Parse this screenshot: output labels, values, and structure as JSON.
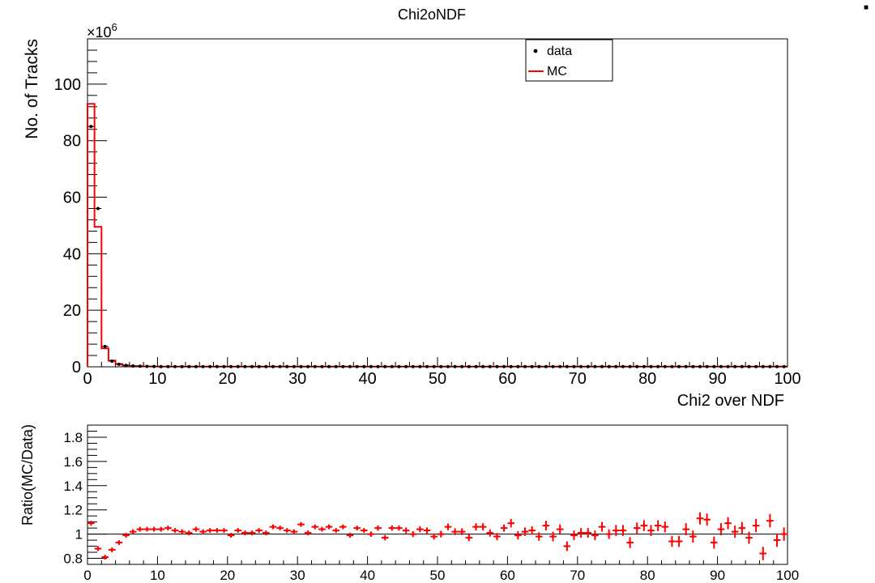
{
  "corner_marker": "■",
  "chart_data": [
    {
      "type": "histogram",
      "title": "Chi2oNDF",
      "xlabel": "Chi2 over NDF",
      "ylabel": "No. of Tracks",
      "y_multiplier_base": "×10",
      "y_multiplier_exp": "6",
      "xlim": [
        0,
        100
      ],
      "ylim": [
        0,
        116
      ],
      "log_scale": false,
      "grid": false,
      "legend_position": "top-right",
      "x_ticks": [
        0,
        10,
        20,
        30,
        40,
        50,
        60,
        70,
        80,
        90,
        100
      ],
      "y_ticks": [
        0,
        20,
        40,
        60,
        80,
        100
      ],
      "bin_edges_start": 0,
      "bin_width": 1,
      "series": [
        {
          "name": "data",
          "style": "points",
          "color": "#000000",
          "values": [
            85,
            56,
            7.2,
            2.0,
            0.9,
            0.5,
            0.3,
            0.2,
            0.15,
            0.1
          ]
        },
        {
          "name": "MC",
          "style": "step",
          "color": "#ff0000",
          "values": [
            93,
            49.5,
            6.5,
            2.2,
            1.0,
            0.5,
            0.3,
            0.2,
            0.15,
            0.1
          ]
        }
      ]
    },
    {
      "type": "scatter",
      "title": "",
      "xlabel": "",
      "ylabel": "Ratio(MC/Data)",
      "xlim": [
        0,
        100
      ],
      "ylim": [
        0.75,
        1.9
      ],
      "grid": false,
      "reference_line": 1,
      "x_ticks": [
        0,
        10,
        20,
        30,
        40,
        50,
        60,
        70,
        80,
        90,
        100
      ],
      "y_ticks": [
        0.8,
        1,
        1.2,
        1.4,
        1.6,
        1.8
      ],
      "y_tick_labels": [
        "0.8",
        "1",
        "1.2",
        "1.4",
        "1.6",
        "1.8"
      ],
      "series": [
        {
          "color": "#ff0000",
          "x": [
            0.5,
            1.5,
            2.5,
            3.5,
            4.5,
            5.5,
            6.5,
            7.5,
            8.5,
            9.5,
            10.5,
            11.5,
            12.5,
            13.5,
            14.5,
            15.5,
            16.5,
            17.5,
            18.5,
            19.5,
            20.5,
            21.5,
            22.5,
            23.5,
            24.5,
            25.5,
            26.5,
            27.5,
            28.5,
            29.5,
            30.5,
            31.5,
            32.5,
            33.5,
            34.5,
            35.5,
            36.5,
            37.5,
            38.5,
            39.5,
            40.5,
            41.5,
            42.5,
            43.5,
            44.5,
            45.5,
            46.5,
            47.5,
            48.5,
            49.5,
            50.5,
            51.5,
            52.5,
            53.5,
            54.5,
            55.5,
            56.5,
            57.5,
            58.5,
            59.5,
            60.5,
            61.5,
            62.5,
            63.5,
            64.5,
            65.5,
            66.5,
            67.5,
            68.5,
            69.5,
            70.5,
            71.5,
            72.5,
            73.5,
            74.5,
            75.5,
            76.5,
            77.5,
            78.5,
            79.5,
            80.5,
            81.5,
            82.5,
            83.5,
            84.5,
            85.5,
            86.5,
            87.5,
            88.5,
            89.5,
            90.5,
            91.5,
            92.5,
            93.5,
            94.5,
            95.5,
            96.5,
            97.5,
            98.5,
            99.5
          ],
          "y": [
            1.09,
            0.88,
            0.81,
            0.87,
            0.93,
            0.99,
            1.02,
            1.04,
            1.04,
            1.04,
            1.04,
            1.05,
            1.03,
            1.02,
            1.01,
            1.04,
            1.02,
            1.03,
            1.03,
            1.03,
            0.99,
            1.03,
            1.01,
            1.01,
            1.03,
            1.01,
            1.06,
            1.05,
            1.03,
            1.02,
            1.08,
            1.01,
            1.06,
            1.04,
            1.06,
            1.03,
            1.06,
            0.99,
            1.05,
            1.03,
            1.0,
            1.05,
            0.97,
            1.05,
            1.05,
            1.03,
            1.0,
            1.04,
            1.03,
            0.98,
            1.0,
            1.06,
            1.02,
            1.02,
            0.97,
            1.06,
            1.06,
            1.01,
            0.98,
            1.05,
            1.09,
            0.99,
            1.02,
            1.03,
            0.98,
            1.07,
            0.98,
            1.04,
            0.9,
            0.99,
            1.01,
            1.01,
            0.99,
            1.06,
            1.0,
            1.03,
            1.03,
            0.93,
            1.05,
            1.07,
            1.03,
            1.07,
            1.06,
            0.94,
            0.94,
            1.04,
            0.98,
            1.13,
            1.12,
            0.93,
            1.04,
            1.09,
            1.02,
            1.05,
            0.97,
            1.07,
            0.84,
            1.11,
            0.95,
            1.0
          ],
          "err": [
            0.005,
            0.01,
            0.01,
            0.01,
            0.01,
            0.01,
            0.01,
            0.01,
            0.01,
            0.01,
            0.01,
            0.01,
            0.01,
            0.01,
            0.01,
            0.01,
            0.01,
            0.01,
            0.01,
            0.01,
            0.012,
            0.012,
            0.012,
            0.012,
            0.012,
            0.012,
            0.015,
            0.015,
            0.015,
            0.015,
            0.018,
            0.018,
            0.018,
            0.018,
            0.018,
            0.02,
            0.02,
            0.02,
            0.02,
            0.02,
            0.022,
            0.022,
            0.022,
            0.022,
            0.022,
            0.025,
            0.025,
            0.025,
            0.025,
            0.025,
            0.028,
            0.028,
            0.028,
            0.028,
            0.028,
            0.03,
            0.03,
            0.03,
            0.03,
            0.03,
            0.035,
            0.035,
            0.035,
            0.035,
            0.035,
            0.04,
            0.04,
            0.04,
            0.04,
            0.04,
            0.04,
            0.04,
            0.04,
            0.04,
            0.04,
            0.045,
            0.045,
            0.045,
            0.045,
            0.045,
            0.045,
            0.045,
            0.045,
            0.045,
            0.045,
            0.05,
            0.05,
            0.05,
            0.05,
            0.05,
            0.05,
            0.05,
            0.05,
            0.05,
            0.05,
            0.055,
            0.055,
            0.055,
            0.055,
            0.055
          ]
        }
      ]
    }
  ]
}
